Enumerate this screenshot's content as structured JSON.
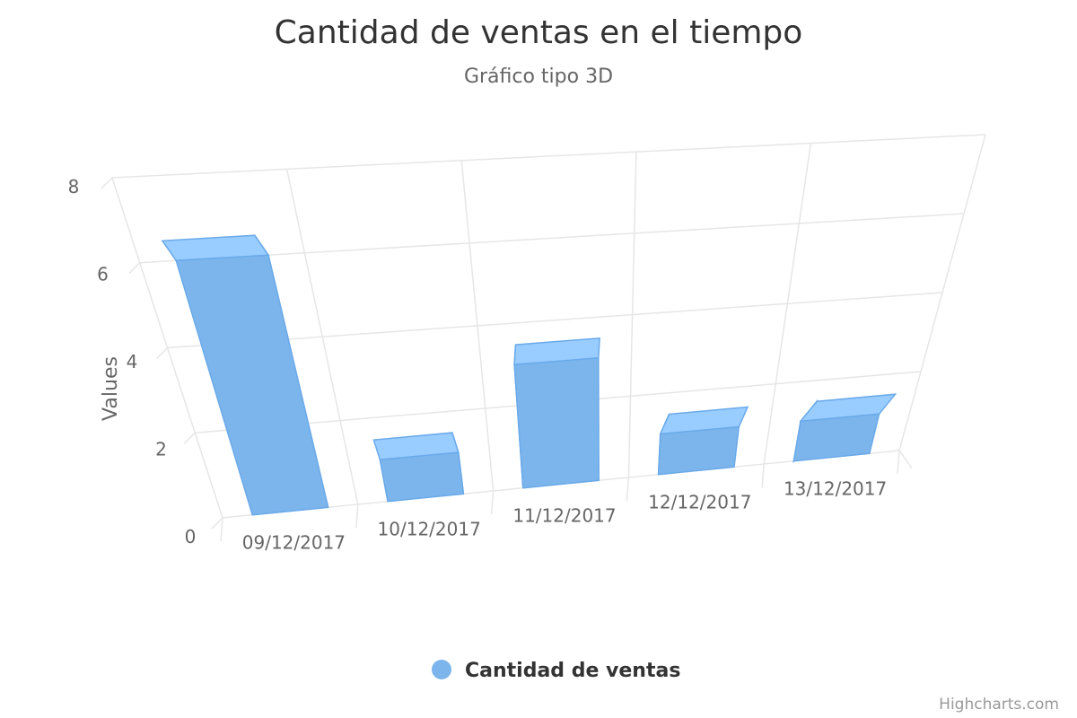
{
  "chart_data": {
    "type": "bar",
    "title": "Cantidad de ventas en el tiempo",
    "subtitle": "Gráfico tipo 3D",
    "ylabel": "Values",
    "ylim": [
      0,
      8
    ],
    "yticks": [
      0,
      2,
      4,
      6,
      8
    ],
    "categories": [
      "09/12/2017",
      "10/12/2017",
      "11/12/2017",
      "12/12/2017",
      "13/12/2017"
    ],
    "series": [
      {
        "name": "Cantidad de ventas",
        "values": [
          6,
          1,
          3,
          1,
          1
        ],
        "color": "#7cb5ec"
      }
    ],
    "legend_position": "bottom-center",
    "grid": true,
    "credits": "Highcharts.com"
  }
}
